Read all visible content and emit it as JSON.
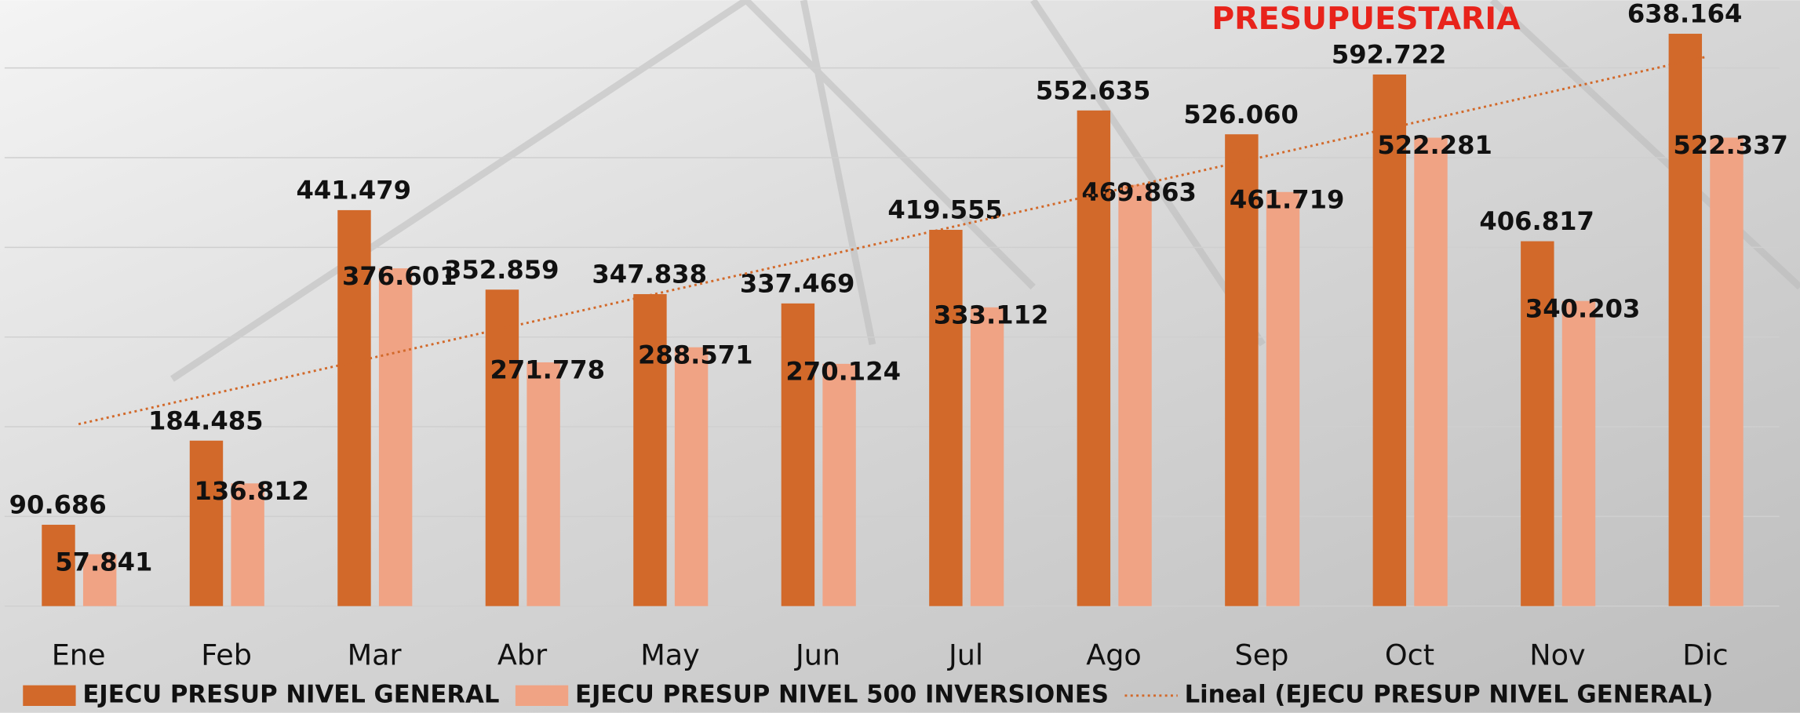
{
  "chart_data": {
    "type": "bar",
    "title": "PRESUPUESTARIA",
    "categories": [
      "Ene",
      "Feb",
      "Mar",
      "Abr",
      "May",
      "Jun",
      "Jul",
      "Ago",
      "Sep",
      "Oct",
      "Nov",
      "Dic"
    ],
    "series": [
      {
        "name": "EJECU PRESUP NIVEL GENERAL",
        "color": "#d2692a",
        "values": [
          90686,
          184485,
          441479,
          352859,
          347838,
          337469,
          419555,
          552635,
          526060,
          592722,
          406817,
          638164
        ],
        "value_labels": [
          "90.686",
          "184.485",
          "441.479",
          "352.859",
          "347.838",
          "337.469",
          "419.555",
          "552.635",
          "526.060",
          "592.722",
          "406.817",
          "638.164"
        ]
      },
      {
        "name": "EJECU PRESUP NIVEL 500 INVERSIONES",
        "color": "#f0a384",
        "values": [
          57841,
          136812,
          376601,
          271778,
          288571,
          270124,
          333112,
          469863,
          461719,
          522281,
          340203,
          522337
        ],
        "value_labels": [
          "57.841",
          "136.812",
          "376.601",
          "271.778",
          "288.571",
          "270.124",
          "333.112",
          "469.863",
          "461.719",
          "522.281",
          "340.203",
          "522.337"
        ]
      }
    ],
    "trendline": {
      "name": "Lineal (EJECU PRESUP NIVEL GENERAL)",
      "color": "#d2692a",
      "series": 0
    },
    "ylim": [
      0,
      650000
    ],
    "yticks": [
      0,
      100000,
      200000,
      300000,
      400000,
      500000,
      600000
    ],
    "grid": true
  }
}
